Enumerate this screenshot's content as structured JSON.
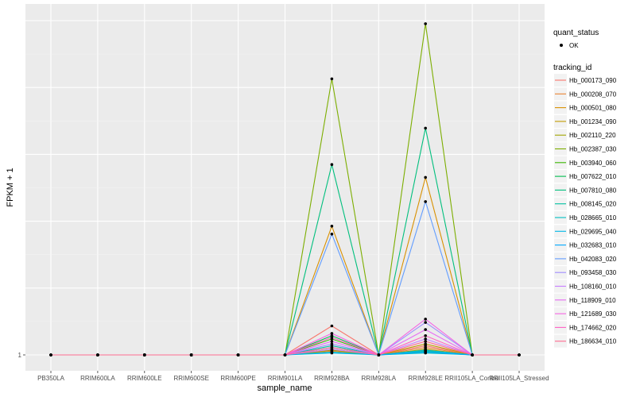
{
  "chart_data": {
    "type": "line",
    "xlabel": "sample_name",
    "ylabel": "FPKM + 1",
    "y_tick_labels": [
      "1"
    ],
    "y_scale": "log",
    "ylim": [
      1,
      32
    ],
    "categories": [
      "PB350LA",
      "RRIM600LA",
      "RRIM600LE",
      "RRIM600SE",
      "RRIM600PE",
      "RRIM901LA",
      "RRIM928BA",
      "RRIM928LA",
      "RRIM928LE",
      "RRII105LA_Control",
      "RRII105LA_Stressed"
    ],
    "grid": true,
    "legend_position": "right",
    "legend_point": {
      "title": "quant_status",
      "label": "OK"
    },
    "legend_line_title": "tracking_id",
    "series": [
      {
        "name": "Hb_000173_090",
        "color": "#F8766D",
        "values": [
          1,
          1,
          1,
          1,
          1,
          1,
          1.35,
          1,
          1.1,
          1,
          1
        ]
      },
      {
        "name": "Hb_000208_070",
        "color": "#EA8331",
        "values": [
          1,
          1,
          1,
          1,
          1,
          1,
          1.04,
          1,
          1.08,
          1,
          1
        ]
      },
      {
        "name": "Hb_000501_080",
        "color": "#D89000",
        "values": [
          1,
          1,
          1,
          1,
          1,
          1,
          3.8,
          1,
          6.3,
          1,
          1
        ]
      },
      {
        "name": "Hb_001234_090",
        "color": "#C09B00",
        "values": [
          1,
          1,
          1,
          1,
          1,
          1,
          1.06,
          1,
          1.12,
          1,
          1
        ]
      },
      {
        "name": "Hb_002110_220",
        "color": "#A3A500",
        "values": [
          1,
          1,
          1,
          1,
          1,
          1,
          1.05,
          1,
          1.06,
          1,
          1
        ]
      },
      {
        "name": "Hb_002387_030",
        "color": "#7CAE00",
        "values": [
          1,
          1,
          1,
          1,
          1,
          1,
          17.5,
          1,
          31,
          1,
          1
        ]
      },
      {
        "name": "Hb_003940_060",
        "color": "#39B600",
        "values": [
          1,
          1,
          1,
          1,
          1,
          1,
          1.18,
          1,
          1.05,
          1,
          1
        ]
      },
      {
        "name": "Hb_007622_010",
        "color": "#00BB4E",
        "values": [
          1,
          1,
          1,
          1,
          1,
          1,
          1.22,
          1,
          1.03,
          1,
          1
        ]
      },
      {
        "name": "Hb_007810_080",
        "color": "#00BF7D",
        "values": [
          1,
          1,
          1,
          1,
          1,
          1,
          7.2,
          1,
          10.5,
          1,
          1
        ]
      },
      {
        "name": "Hb_008145_020",
        "color": "#00C1A3",
        "values": [
          1,
          1,
          1,
          1,
          1,
          1,
          1.1,
          1,
          1.04,
          1,
          1
        ]
      },
      {
        "name": "Hb_028665_010",
        "color": "#00BFC4",
        "values": [
          1,
          1,
          1,
          1,
          1,
          1,
          1.03,
          1,
          1.02,
          1,
          1
        ]
      },
      {
        "name": "Hb_029695_040",
        "color": "#00B8E7",
        "values": [
          1,
          1,
          1,
          1,
          1,
          1,
          1.02,
          1,
          1.05,
          1,
          1
        ]
      },
      {
        "name": "Hb_032683_010",
        "color": "#00A9FF",
        "values": [
          1,
          1,
          1,
          1,
          1,
          1,
          1.08,
          1,
          1.03,
          1,
          1
        ]
      },
      {
        "name": "Hb_042083_020",
        "color": "#619CFF",
        "values": [
          1,
          1,
          1,
          1,
          1,
          1,
          3.5,
          1,
          4.9,
          1,
          1
        ]
      },
      {
        "name": "Hb_093458_030",
        "color": "#9F8CFF",
        "values": [
          1,
          1,
          1,
          1,
          1,
          1,
          1.12,
          1,
          1.4,
          1,
          1
        ]
      },
      {
        "name": "Hb_108160_010",
        "color": "#C77CFF",
        "values": [
          1,
          1,
          1,
          1,
          1,
          1,
          1.06,
          1,
          1.18,
          1,
          1
        ]
      },
      {
        "name": "Hb_118909_010",
        "color": "#E76BF3",
        "values": [
          1,
          1,
          1,
          1,
          1,
          1,
          1.15,
          1,
          1.3,
          1,
          1
        ]
      },
      {
        "name": "Hb_121689_030",
        "color": "#F564E3",
        "values": [
          1,
          1,
          1,
          1,
          1,
          1,
          1.25,
          1,
          1.45,
          1,
          1
        ]
      },
      {
        "name": "Hb_174662_020",
        "color": "#FF61C3",
        "values": [
          1,
          1,
          1,
          1,
          1,
          1,
          1.2,
          1,
          1.22,
          1,
          1
        ]
      },
      {
        "name": "Hb_186634_010",
        "color": "#FF6C90",
        "values": [
          1,
          1,
          1,
          1,
          1,
          1,
          1.08,
          1,
          1.15,
          1,
          1
        ]
      }
    ]
  }
}
